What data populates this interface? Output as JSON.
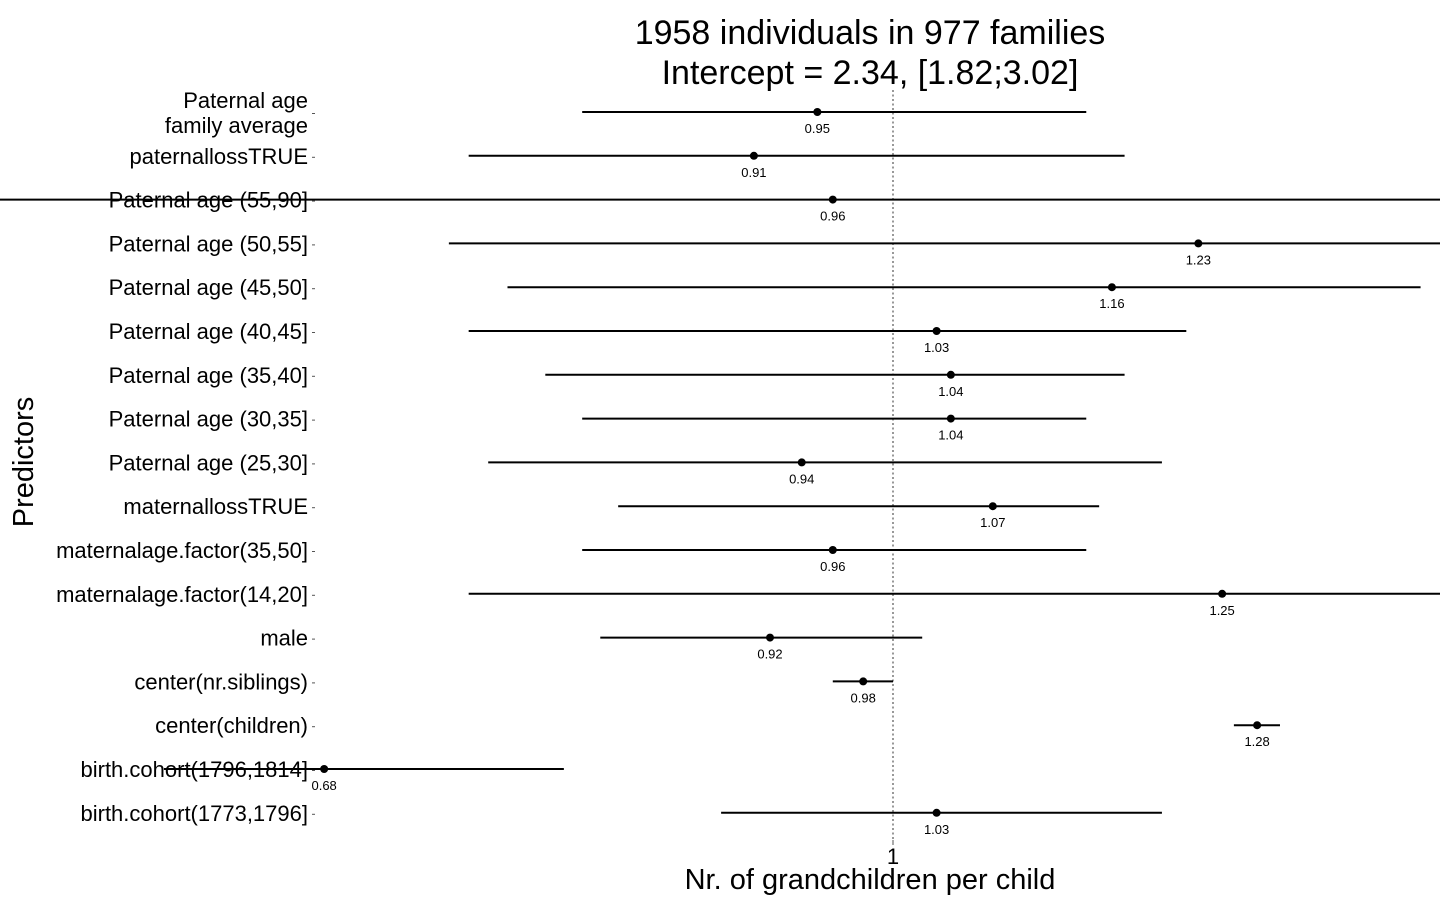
{
  "chart_data": {
    "type": "forest",
    "title_lines": [
      "1958 individuals in 977 families",
      "Intercept = 2.34, [1.82;3.02]"
    ],
    "xlabel": "Nr. of grandchildren per child",
    "ylabel": "Predictors",
    "x_scale": "log",
    "x_ticks": [
      {
        "value": 1,
        "label": "1"
      }
    ],
    "reference_line": {
      "x": 1,
      "style": "dotted"
    },
    "xlim": [
      0.5,
      1.9
    ],
    "grid": false,
    "legend": "none",
    "rows": [
      {
        "label": [
          "Paternal age",
          "family average"
        ],
        "estimate": 0.95,
        "lower": 0.81,
        "upper": 1.14,
        "value_label": "0.95"
      },
      {
        "label": [
          "paternallossTRUE"
        ],
        "estimate": 0.91,
        "lower": 0.75,
        "upper": 1.17,
        "value_label": "0.91"
      },
      {
        "label": [
          "Paternal age (55,90]"
        ],
        "estimate": 0.96,
        "lower": 0.53,
        "upper": 1.83,
        "value_label": "0.96"
      },
      {
        "label": [
          "Paternal age (50,55]"
        ],
        "estimate": 1.23,
        "lower": 0.74,
        "upper": 1.64,
        "value_label": "1.23"
      },
      {
        "label": [
          "Paternal age (45,50]"
        ],
        "estimate": 1.16,
        "lower": 0.77,
        "upper": 1.43,
        "value_label": "1.16"
      },
      {
        "label": [
          "Paternal age (40,45]"
        ],
        "estimate": 1.03,
        "lower": 0.75,
        "upper": 1.22,
        "value_label": "1.03"
      },
      {
        "label": [
          "Paternal age (35,40]"
        ],
        "estimate": 1.04,
        "lower": 0.79,
        "upper": 1.17,
        "value_label": "1.04"
      },
      {
        "label": [
          "Paternal age (30,35]"
        ],
        "estimate": 1.04,
        "lower": 0.81,
        "upper": 1.14,
        "value_label": "1.04"
      },
      {
        "label": [
          "Paternal age (25,30]"
        ],
        "estimate": 0.94,
        "lower": 0.76,
        "upper": 1.2,
        "value_label": "0.94"
      },
      {
        "label": [
          "maternallossTRUE"
        ],
        "estimate": 1.07,
        "lower": 0.83,
        "upper": 1.15,
        "value_label": "1.07"
      },
      {
        "label": [
          "maternalage.factor(35,50]"
        ],
        "estimate": 0.96,
        "lower": 0.81,
        "upper": 1.14,
        "value_label": "0.96"
      },
      {
        "label": [
          "maternalage.factor(14,20]"
        ],
        "estimate": 1.25,
        "lower": 0.75,
        "upper": 1.67,
        "value_label": "1.25"
      },
      {
        "label": [
          "male"
        ],
        "estimate": 0.92,
        "lower": 0.82,
        "upper": 1.02,
        "value_label": "0.92"
      },
      {
        "label": [
          "center(nr.siblings)"
        ],
        "estimate": 0.98,
        "lower": 0.96,
        "upper": 1.0,
        "value_label": "0.98"
      },
      {
        "label": [
          "center(children)"
        ],
        "estimate": 1.28,
        "lower": 1.26,
        "upper": 1.3,
        "value_label": "1.28"
      },
      {
        "label": [
          "birth.cohort(1796,1814]"
        ],
        "estimate": 0.68,
        "lower": 0.61,
        "upper": 0.8,
        "value_label": "0.68"
      },
      {
        "label": [
          "birth.cohort(1773,1796]"
        ],
        "estimate": 1.03,
        "lower": 0.89,
        "upper": 1.2,
        "value_label": "1.03"
      }
    ],
    "colors": {
      "line": "#000000",
      "point": "#000000",
      "reference_line": "#555555",
      "background": "#ffffff"
    }
  }
}
